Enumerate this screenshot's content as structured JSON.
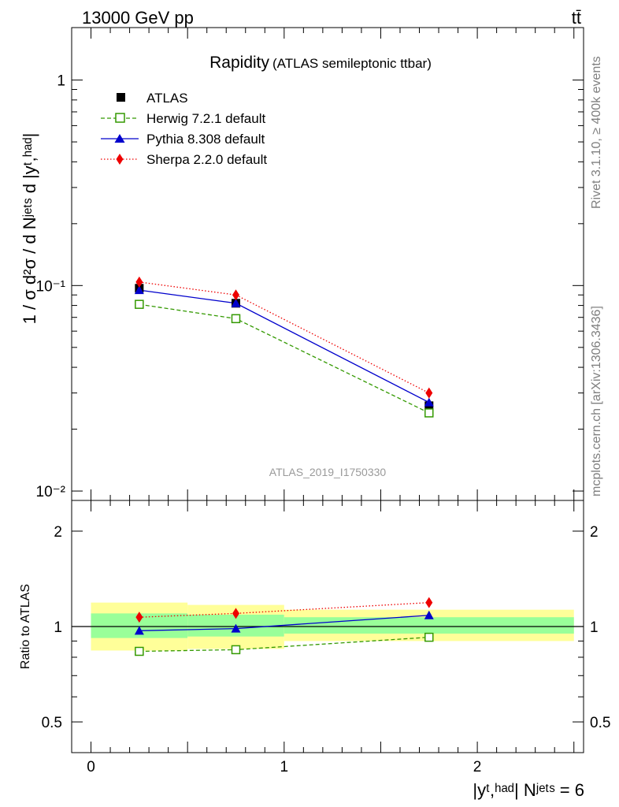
{
  "header": {
    "energy_label": "13000 GeV pp",
    "process_label": "tt̄"
  },
  "side_labels": {
    "rivet": "Rivet 3.1.10, ≥ 400k events",
    "mcplots": "mcplots.cern.ch [arXiv:1306.3436]"
  },
  "chart_data": [
    {
      "type": "line",
      "panel": "main",
      "title": "Rapidity",
      "subtitle": "(ATLAS semileptonic ttbar)",
      "ylabel": "1 / σ d²σ / d Nʲᵉᵗˢ d |yᵗ,ʰᵃᵈ|",
      "y_scale": "log",
      "ylim": [
        0.009,
        1.8
      ],
      "xlim": [
        -0.1,
        2.55
      ],
      "y_tick_labels": [
        "1",
        "10⁻¹",
        "10⁻²"
      ],
      "watermark": "ATLAS_2019_I1750330",
      "legend_position": "top-left",
      "x": [
        0.25,
        0.75,
        1.75
      ],
      "series": [
        {
          "name": "ATLAS",
          "values": [
            0.097,
            0.082,
            0.026
          ],
          "color": "#000000",
          "marker": "square-filled",
          "line": "none"
        },
        {
          "name": "Herwig 7.2.1 default",
          "values": [
            0.081,
            0.069,
            0.024
          ],
          "color": "#339900",
          "marker": "square-open",
          "line": "dashed"
        },
        {
          "name": "Pythia 8.308 default",
          "values": [
            0.095,
            0.082,
            0.027
          ],
          "color": "#0000cc",
          "marker": "triangle",
          "line": "solid"
        },
        {
          "name": "Sherpa 2.2.0 default",
          "values": [
            0.104,
            0.09,
            0.03
          ],
          "color": "#ee0000",
          "marker": "diamond",
          "line": "dotted"
        }
      ]
    },
    {
      "type": "line",
      "panel": "ratio",
      "ylabel": "Ratio to ATLAS",
      "y_scale": "log",
      "ylim": [
        0.4,
        2.5
      ],
      "xlim": [
        -0.1,
        2.55
      ],
      "y_tick_labels": [
        "2",
        "1",
        "0.5"
      ],
      "x_tick_labels": [
        "0",
        "1",
        "2"
      ],
      "xlabel_main": "|yᵗ,ʰᵃᵈ| Nʲᵉᵗˢ = 6",
      "x": [
        0.25,
        0.75,
        1.75
      ],
      "bands": [
        {
          "x": [
            0,
            0.5
          ],
          "yellow": [
            0.84,
            1.19
          ],
          "green": [
            0.92,
            1.1
          ]
        },
        {
          "x": [
            0.5,
            1.0
          ],
          "yellow": [
            0.85,
            1.17
          ],
          "green": [
            0.93,
            1.09
          ]
        },
        {
          "x": [
            1.0,
            2.5
          ],
          "yellow": [
            0.9,
            1.13
          ],
          "green": [
            0.95,
            1.07
          ]
        }
      ],
      "series": [
        {
          "name": "Herwig 7.2.1 default",
          "values": [
            0.835,
            0.845,
            0.925
          ],
          "color": "#339900",
          "marker": "square-open",
          "line": "dashed"
        },
        {
          "name": "Pythia 8.308 default",
          "values": [
            0.97,
            0.985,
            1.085
          ],
          "color": "#0000cc",
          "marker": "triangle",
          "line": "solid"
        },
        {
          "name": "Sherpa 2.2.0 default",
          "values": [
            1.07,
            1.1,
            1.19
          ],
          "color": "#ee0000",
          "marker": "diamond",
          "line": "dotted"
        }
      ]
    }
  ]
}
